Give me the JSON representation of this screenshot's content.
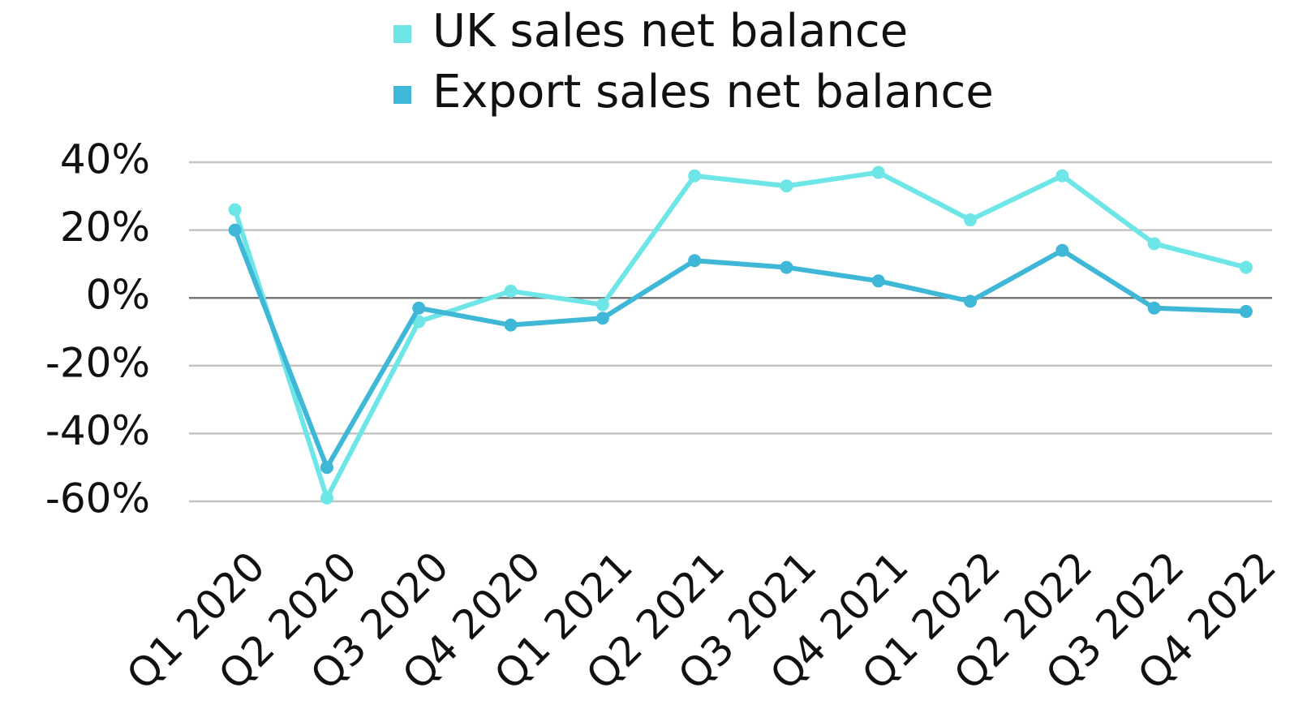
{
  "chart_data": {
    "type": "line",
    "categories": [
      "Q1 2020",
      "Q2 2020",
      "Q3 2020",
      "Q4 2020",
      "Q1 2021",
      "Q2 2021",
      "Q3 2021",
      "Q4 2021",
      "Q1 2022",
      "Q2 2022",
      "Q3 2022",
      "Q4 2022"
    ],
    "series": [
      {
        "name": "UK sales net balance",
        "color": "#6ee6e8",
        "values": [
          26,
          -59,
          -7,
          2,
          -2,
          36,
          33,
          37,
          23,
          36,
          16,
          9
        ]
      },
      {
        "name": "Export sales net balance",
        "color": "#3fb8d8",
        "values": [
          20,
          -50,
          -3,
          -8,
          -6,
          11,
          9,
          5,
          -1,
          14,
          -3,
          -4
        ]
      }
    ],
    "ylim": [
      -60,
      40
    ],
    "yticks": [
      {
        "value": -60,
        "label": "-60%"
      },
      {
        "value": -40,
        "label": "-40%"
      },
      {
        "value": -20,
        "label": "-20%"
      },
      {
        "value": 0,
        "label": "0%"
      },
      {
        "value": 20,
        "label": "20%"
      },
      {
        "value": 40,
        "label": "40%"
      }
    ],
    "grid": true,
    "legend": "top"
  }
}
